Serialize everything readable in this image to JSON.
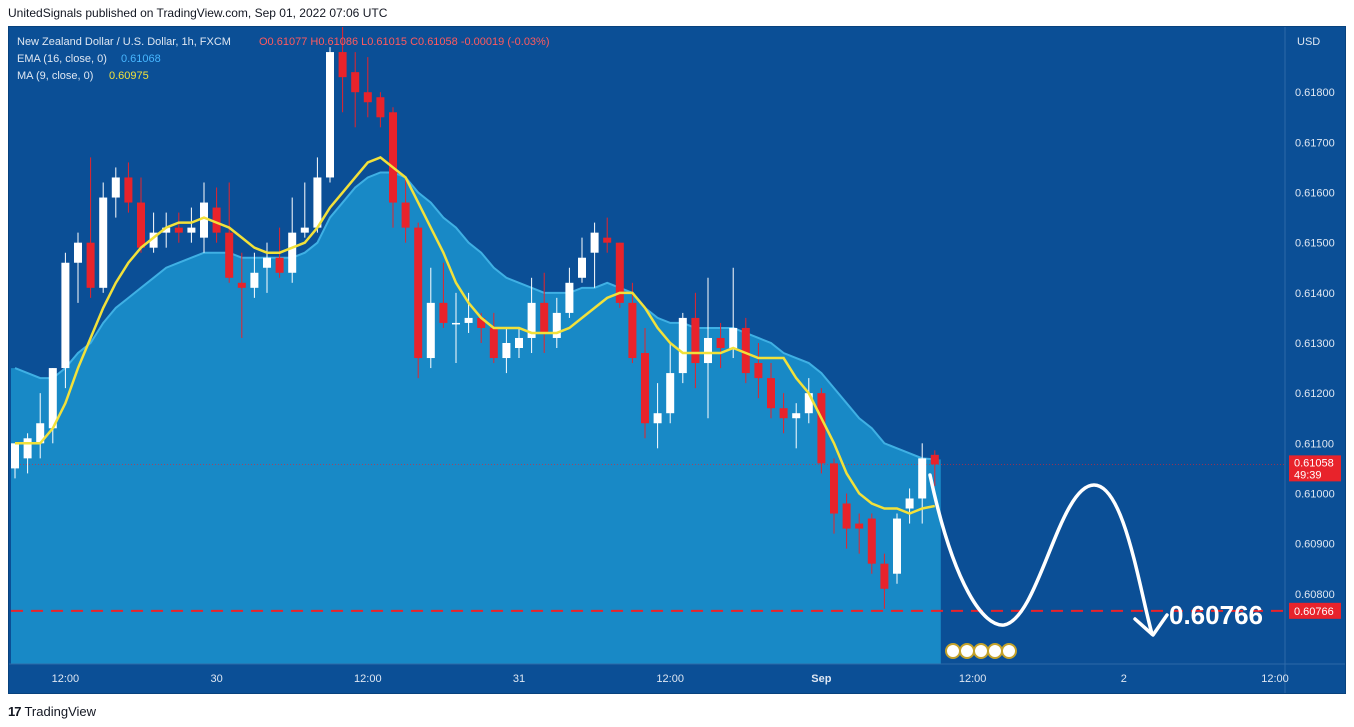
{
  "header": {
    "published": "UnitedSignals published on TradingView.com, Sep 01, 2022 07:06 UTC"
  },
  "legend": {
    "symbol": "New Zealand Dollar / U.S. Dollar, 1h, FXCM",
    "ohlc": "O0.61077  H0.61086  L0.61015  C0.61058  -0.00019 (-0.03%)",
    "ema_label": "EMA (16, close, 0)",
    "ema_value": "0.61068",
    "ma_label": "MA (9, close, 0)",
    "ma_value": "0.60975"
  },
  "axis": {
    "currency": "USD",
    "price_label": "0.61058",
    "countdown": "49:39",
    "target_label": "0.60766"
  },
  "annotation": {
    "target_text": "0.60766"
  },
  "footer": {
    "brand": "TradingView",
    "logo": "17"
  },
  "colors": {
    "background": "#0b4f96",
    "area": "#1a8fcb",
    "up": "#ffffff",
    "down": "#e8232b",
    "ma": "#f2e13a",
    "target_line": "#e8232b"
  },
  "chart_data": {
    "type": "candlestick",
    "title": "New Zealand Dollar / U.S. Dollar, 1h, FXCM",
    "ylim": [
      0.6066,
      0.6193
    ],
    "y_ticks": [
      0.618,
      0.617,
      0.616,
      0.615,
      0.614,
      0.613,
      0.612,
      0.611,
      0.61,
      0.609,
      0.608
    ],
    "y_tick_labels": [
      "0.61800",
      "0.61700",
      "0.61600",
      "0.61500",
      "0.61400",
      "0.61300",
      "0.61200",
      "0.61100",
      "0.61000",
      "0.60900",
      "0.60800"
    ],
    "x_ticks": [
      {
        "label": "12:00",
        "bar": 4
      },
      {
        "label": "30",
        "bar": 16
      },
      {
        "label": "12:00",
        "bar": 28
      },
      {
        "label": "31",
        "bar": 40
      },
      {
        "label": "12:00",
        "bar": 52
      },
      {
        "label": "Sep",
        "bar": 64
      },
      {
        "label": "12:00",
        "bar": 76
      },
      {
        "label": "2",
        "bar": 88
      },
      {
        "label": "12:00",
        "bar": 100
      }
    ],
    "candles": [
      {
        "o": 0.6105,
        "h": 0.6109,
        "l": 0.6103,
        "c": 0.611
      },
      {
        "o": 0.6107,
        "h": 0.6112,
        "l": 0.6104,
        "c": 0.6111
      },
      {
        "o": 0.611,
        "h": 0.612,
        "l": 0.6107,
        "c": 0.6114
      },
      {
        "o": 0.6113,
        "h": 0.6125,
        "l": 0.611,
        "c": 0.6125
      },
      {
        "o": 0.6125,
        "h": 0.6148,
        "l": 0.6121,
        "c": 0.6146
      },
      {
        "o": 0.6146,
        "h": 0.6152,
        "l": 0.6138,
        "c": 0.615
      },
      {
        "o": 0.615,
        "h": 0.6167,
        "l": 0.6139,
        "c": 0.6141
      },
      {
        "o": 0.6141,
        "h": 0.6162,
        "l": 0.614,
        "c": 0.6159
      },
      {
        "o": 0.6159,
        "h": 0.6165,
        "l": 0.6155,
        "c": 0.6163
      },
      {
        "o": 0.6163,
        "h": 0.6166,
        "l": 0.6156,
        "c": 0.6158
      },
      {
        "o": 0.6158,
        "h": 0.6163,
        "l": 0.6148,
        "c": 0.6149
      },
      {
        "o": 0.6149,
        "h": 0.6156,
        "l": 0.6148,
        "c": 0.6152
      },
      {
        "o": 0.6152,
        "h": 0.6156,
        "l": 0.6149,
        "c": 0.6153
      },
      {
        "o": 0.6153,
        "h": 0.6156,
        "l": 0.615,
        "c": 0.6152
      },
      {
        "o": 0.6152,
        "h": 0.6157,
        "l": 0.615,
        "c": 0.6153
      },
      {
        "o": 0.6151,
        "h": 0.6162,
        "l": 0.6148,
        "c": 0.6158
      },
      {
        "o": 0.6157,
        "h": 0.6161,
        "l": 0.615,
        "c": 0.6152
      },
      {
        "o": 0.6152,
        "h": 0.6162,
        "l": 0.6142,
        "c": 0.6143
      },
      {
        "o": 0.6142,
        "h": 0.6148,
        "l": 0.6131,
        "c": 0.6141
      },
      {
        "o": 0.6141,
        "h": 0.6148,
        "l": 0.6139,
        "c": 0.6144
      },
      {
        "o": 0.6145,
        "h": 0.615,
        "l": 0.614,
        "c": 0.6147
      },
      {
        "o": 0.6147,
        "h": 0.6153,
        "l": 0.6143,
        "c": 0.6144
      },
      {
        "o": 0.6144,
        "h": 0.6159,
        "l": 0.6142,
        "c": 0.6152
      },
      {
        "o": 0.6152,
        "h": 0.6162,
        "l": 0.6151,
        "c": 0.6153
      },
      {
        "o": 0.6153,
        "h": 0.6167,
        "l": 0.6152,
        "c": 0.6163
      },
      {
        "o": 0.6163,
        "h": 0.6189,
        "l": 0.6162,
        "c": 0.6188
      },
      {
        "o": 0.6188,
        "h": 0.6194,
        "l": 0.6176,
        "c": 0.6183
      },
      {
        "o": 0.6184,
        "h": 0.6188,
        "l": 0.6173,
        "c": 0.618
      },
      {
        "o": 0.618,
        "h": 0.6187,
        "l": 0.6175,
        "c": 0.6178
      },
      {
        "o": 0.6179,
        "h": 0.618,
        "l": 0.6173,
        "c": 0.6175
      },
      {
        "o": 0.6176,
        "h": 0.6177,
        "l": 0.6153,
        "c": 0.6158
      },
      {
        "o": 0.6158,
        "h": 0.6163,
        "l": 0.615,
        "c": 0.6153
      },
      {
        "o": 0.6153,
        "h": 0.6154,
        "l": 0.6123,
        "c": 0.6127
      },
      {
        "o": 0.6127,
        "h": 0.6145,
        "l": 0.6125,
        "c": 0.6138
      },
      {
        "o": 0.6138,
        "h": 0.6146,
        "l": 0.6133,
        "c": 0.6134
      },
      {
        "o": 0.6134,
        "h": 0.614,
        "l": 0.6126,
        "c": 0.6134
      },
      {
        "o": 0.6134,
        "h": 0.614,
        "l": 0.6132,
        "c": 0.6135
      },
      {
        "o": 0.6135,
        "h": 0.6136,
        "l": 0.613,
        "c": 0.6133
      },
      {
        "o": 0.6133,
        "h": 0.6136,
        "l": 0.6126,
        "c": 0.6127
      },
      {
        "o": 0.6127,
        "h": 0.6133,
        "l": 0.6124,
        "c": 0.613
      },
      {
        "o": 0.6129,
        "h": 0.6133,
        "l": 0.6127,
        "c": 0.6131
      },
      {
        "o": 0.6131,
        "h": 0.6143,
        "l": 0.6128,
        "c": 0.6138
      },
      {
        "o": 0.6138,
        "h": 0.6144,
        "l": 0.6128,
        "c": 0.6132
      },
      {
        "o": 0.6131,
        "h": 0.6139,
        "l": 0.6129,
        "c": 0.6136
      },
      {
        "o": 0.6136,
        "h": 0.6145,
        "l": 0.6135,
        "c": 0.6142
      },
      {
        "o": 0.6143,
        "h": 0.6151,
        "l": 0.6142,
        "c": 0.6147
      },
      {
        "o": 0.6148,
        "h": 0.6154,
        "l": 0.6141,
        "c": 0.6152
      },
      {
        "o": 0.6151,
        "h": 0.6155,
        "l": 0.6148,
        "c": 0.615
      },
      {
        "o": 0.615,
        "h": 0.615,
        "l": 0.6137,
        "c": 0.6138
      },
      {
        "o": 0.6138,
        "h": 0.6142,
        "l": 0.6126,
        "c": 0.6127
      },
      {
        "o": 0.6128,
        "h": 0.6133,
        "l": 0.6111,
        "c": 0.6114
      },
      {
        "o": 0.6114,
        "h": 0.6122,
        "l": 0.6109,
        "c": 0.6116
      },
      {
        "o": 0.6116,
        "h": 0.613,
        "l": 0.6114,
        "c": 0.6124
      },
      {
        "o": 0.6124,
        "h": 0.6136,
        "l": 0.6122,
        "c": 0.6135
      },
      {
        "o": 0.6135,
        "h": 0.614,
        "l": 0.6121,
        "c": 0.6126
      },
      {
        "o": 0.6126,
        "h": 0.6143,
        "l": 0.6115,
        "c": 0.6131
      },
      {
        "o": 0.6131,
        "h": 0.6134,
        "l": 0.6125,
        "c": 0.6129
      },
      {
        "o": 0.6129,
        "h": 0.6145,
        "l": 0.6127,
        "c": 0.6133
      },
      {
        "o": 0.6133,
        "h": 0.6135,
        "l": 0.6122,
        "c": 0.6124
      },
      {
        "o": 0.6126,
        "h": 0.613,
        "l": 0.6119,
        "c": 0.6123
      },
      {
        "o": 0.6123,
        "h": 0.6126,
        "l": 0.6115,
        "c": 0.6117
      },
      {
        "o": 0.6117,
        "h": 0.612,
        "l": 0.6112,
        "c": 0.6115
      },
      {
        "o": 0.6115,
        "h": 0.6118,
        "l": 0.6109,
        "c": 0.6116
      },
      {
        "o": 0.6116,
        "h": 0.6123,
        "l": 0.6114,
        "c": 0.612
      },
      {
        "o": 0.612,
        "h": 0.6121,
        "l": 0.6104,
        "c": 0.6106
      },
      {
        "o": 0.6106,
        "h": 0.6107,
        "l": 0.6092,
        "c": 0.6096
      },
      {
        "o": 0.6098,
        "h": 0.61,
        "l": 0.6089,
        "c": 0.6093
      },
      {
        "o": 0.6094,
        "h": 0.6096,
        "l": 0.6088,
        "c": 0.6093
      },
      {
        "o": 0.6095,
        "h": 0.6096,
        "l": 0.6084,
        "c": 0.6086
      },
      {
        "o": 0.6086,
        "h": 0.6088,
        "l": 0.6077,
        "c": 0.6081
      },
      {
        "o": 0.6084,
        "h": 0.6096,
        "l": 0.6082,
        "c": 0.6095
      },
      {
        "o": 0.6097,
        "h": 0.6101,
        "l": 0.6094,
        "c": 0.6099
      },
      {
        "o": 0.6099,
        "h": 0.611,
        "l": 0.6094,
        "c": 0.6107
      },
      {
        "o": 0.61077,
        "h": 0.61086,
        "l": 0.61015,
        "c": 0.61058
      }
    ],
    "series": [
      {
        "name": "MA (9, close, 0)",
        "last": 0.60975,
        "values": [
          0.611,
          0.611,
          0.611,
          0.6113,
          0.6118,
          0.6125,
          0.6131,
          0.6137,
          0.6142,
          0.6146,
          0.6149,
          0.6151,
          0.6153,
          0.6154,
          0.6154,
          0.6155,
          0.6154,
          0.6153,
          0.6151,
          0.6149,
          0.6148,
          0.6148,
          0.6149,
          0.615,
          0.6153,
          0.6157,
          0.616,
          0.6163,
          0.6166,
          0.6167,
          0.6165,
          0.6163,
          0.6158,
          0.6153,
          0.6148,
          0.6142,
          0.6138,
          0.6135,
          0.6133,
          0.6133,
          0.6133,
          0.6132,
          0.6132,
          0.6132,
          0.6133,
          0.6135,
          0.6137,
          0.6139,
          0.614,
          0.614,
          0.6137,
          0.6133,
          0.613,
          0.6128,
          0.6128,
          0.6128,
          0.6128,
          0.6129,
          0.6128,
          0.6127,
          0.6127,
          0.6127,
          0.6123,
          0.612,
          0.6115,
          0.611,
          0.6104,
          0.61,
          0.6098,
          0.6097,
          0.6097,
          0.6096,
          0.6097,
          0.60975
        ]
      },
      {
        "name": "EMA (16, close, 0)",
        "last": 0.61068,
        "values": [
          0.6125,
          0.6124,
          0.6123,
          0.6123,
          0.6125,
          0.6128,
          0.613,
          0.6134,
          0.6137,
          0.6139,
          0.6141,
          0.6143,
          0.6145,
          0.6146,
          0.6147,
          0.6148,
          0.6148,
          0.6148,
          0.6147,
          0.6147,
          0.6147,
          0.6147,
          0.6147,
          0.6148,
          0.615,
          0.6155,
          0.6158,
          0.6161,
          0.6163,
          0.6164,
          0.6164,
          0.6163,
          0.616,
          0.6158,
          0.6155,
          0.6153,
          0.615,
          0.6148,
          0.6145,
          0.6143,
          0.6142,
          0.6141,
          0.614,
          0.614,
          0.614,
          0.6141,
          0.6141,
          0.6142,
          0.6141,
          0.614,
          0.6137,
          0.6135,
          0.6134,
          0.6134,
          0.6133,
          0.6133,
          0.6133,
          0.6133,
          0.6132,
          0.6131,
          0.613,
          0.6128,
          0.6127,
          0.6126,
          0.6124,
          0.6121,
          0.6118,
          0.6115,
          0.6113,
          0.611,
          0.6109,
          0.6108,
          0.6107,
          0.61068
        ]
      }
    ],
    "target": 0.60766
  }
}
